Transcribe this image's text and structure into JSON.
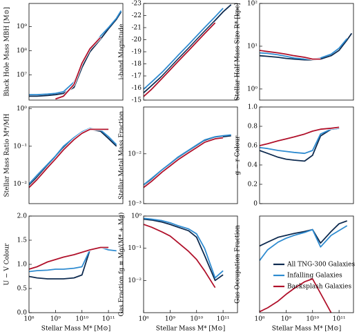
{
  "chart_data": [
    {
      "type": "line",
      "ylabel": "Black Hole Mass MBH [M⊙]",
      "xscale": "log",
      "yscale": "log",
      "xlim": [
        100000000,
        350000000000
      ],
      "ylim": [
        900000,
        9000000000
      ],
      "yticks": [
        {
          "value": 10000000,
          "label": "10⁷"
        },
        {
          "value": 100000000,
          "label": "10⁸"
        },
        {
          "value": 1000000000,
          "label": "10⁹"
        }
      ],
      "x": [
        100000000,
        200000000,
        500000000,
        1000000000,
        2000000000,
        5000000000,
        10000000000,
        20000000000,
        50000000000,
        100000000000,
        200000000000,
        300000000000
      ],
      "series": [
        {
          "color": "#0d2a4f",
          "values": [
            1300000,
            1300000,
            1400000,
            1500000,
            1700000,
            3000000,
            20000000,
            90000000,
            300000000,
            800000000,
            2000000000,
            4000000000
          ]
        },
        {
          "color": "#2e8bd0",
          "values": [
            1500000,
            1500000,
            1600000,
            1700000,
            2000000,
            5000000,
            30000000,
            120000000,
            400000000,
            900000000,
            2200000000,
            4500000000
          ]
        },
        {
          "color": "#b0102a",
          "values": [
            null,
            null,
            null,
            1000000,
            1300000,
            4000000,
            30000000,
            120000000,
            350000000,
            null,
            null,
            null
          ]
        }
      ]
    },
    {
      "type": "line",
      "ylabel": "i-band Magnitude",
      "xscale": "log",
      "yscale": "linear",
      "xlim": [
        100000000,
        350000000000
      ],
      "ylim": [
        -15,
        -23
      ],
      "yticks": [
        -15,
        -16,
        -17,
        -18,
        -19,
        -20,
        -21,
        -22,
        -23
      ],
      "x": [
        100000000,
        200000000,
        500000000,
        1000000000,
        2000000000,
        5000000000,
        10000000000,
        20000000000,
        50000000000,
        100000000000,
        200000000000,
        300000000000
      ],
      "series": [
        {
          "color": "#0d2a4f",
          "values": [
            -15.6,
            -16.2,
            -17.0,
            -17.7,
            -18.4,
            -19.3,
            -20.0,
            -20.7,
            -21.6,
            -22.3,
            -22.9,
            null
          ]
        },
        {
          "color": "#2e8bd0",
          "values": [
            -15.9,
            -16.5,
            -17.3,
            -18.0,
            -18.7,
            -19.6,
            -20.3,
            -21.0,
            -21.9,
            -22.6,
            null,
            null
          ]
        },
        {
          "color": "#b0102a",
          "values": [
            -15.3,
            -15.9,
            -16.8,
            -17.5,
            -18.2,
            -19.1,
            -19.8,
            -20.5,
            -21.4,
            null,
            null,
            null
          ]
        }
      ]
    },
    {
      "type": "line",
      "ylabel": "Stellar Half-Mass Size R* [kpc]",
      "xscale": "log",
      "yscale": "log",
      "xlim": [
        100000000,
        350000000000
      ],
      "ylim": [
        0.55,
        100
      ],
      "yticks": [
        {
          "value": 1,
          "label": "10⁰"
        },
        {
          "value": 10,
          "label": "10¹"
        },
        {
          "value": 100,
          "label": "10²"
        }
      ],
      "x": [
        100000000,
        200000000,
        500000000,
        1000000000,
        2000000000,
        5000000000,
        10000000000,
        20000000000,
        50000000000,
        100000000000,
        200000000000,
        300000000000
      ],
      "series": [
        {
          "color": "#0d2a4f",
          "values": [
            6,
            5.8,
            5.5,
            5.2,
            5,
            4.8,
            4.8,
            5,
            6,
            8,
            14,
            20
          ]
        },
        {
          "color": "#2e8bd0",
          "values": [
            7,
            6.8,
            6.3,
            5.8,
            5.3,
            5,
            5,
            5.3,
            6.5,
            9,
            15,
            null
          ]
        },
        {
          "color": "#b0102a",
          "values": [
            8,
            7.5,
            7,
            6.5,
            6,
            5.5,
            5,
            5,
            null,
            null,
            null,
            null
          ]
        }
      ]
    },
    {
      "type": "line",
      "ylabel": "Stellar Mass Ratio M*/MH",
      "xscale": "log",
      "yscale": "log",
      "xlim": [
        100000000,
        350000000000
      ],
      "ylim": [
        0.003,
        1.1
      ],
      "yticks": [
        {
          "value": 0.01,
          "label": "10⁻²"
        },
        {
          "value": 0.1,
          "label": "10⁻¹"
        },
        {
          "value": 1,
          "label": "10⁰"
        }
      ],
      "x": [
        100000000,
        200000000,
        500000000,
        1000000000,
        2000000000,
        5000000000,
        10000000000,
        20000000000,
        50000000000,
        100000000000,
        200000000000,
        300000000000
      ],
      "series": [
        {
          "color": "#0d2a4f",
          "values": [
            0.009,
            0.015,
            0.03,
            0.05,
            0.09,
            0.16,
            0.22,
            0.28,
            0.25,
            0.16,
            0.1,
            null
          ]
        },
        {
          "color": "#2e8bd0",
          "values": [
            0.01,
            0.017,
            0.033,
            0.055,
            0.1,
            0.17,
            0.24,
            0.3,
            0.27,
            0.18,
            0.11,
            null
          ]
        },
        {
          "color": "#b0102a",
          "values": [
            0.008,
            0.013,
            0.027,
            0.046,
            0.08,
            0.15,
            0.22,
            0.28,
            0.28,
            0.28,
            null,
            null
          ]
        }
      ]
    },
    {
      "type": "line",
      "ylabel": "Stellar Metal Mass Fraction",
      "xscale": "log",
      "yscale": "log",
      "xlim": [
        100000000,
        350000000000
      ],
      "ylim": [
        0.001,
        0.087
      ],
      "yticks": [
        {
          "value": 0.001,
          "label": "10⁻³"
        },
        {
          "value": 0.01,
          "label": "10⁻²"
        }
      ],
      "x": [
        100000000,
        200000000,
        500000000,
        1000000000,
        2000000000,
        5000000000,
        10000000000,
        20000000000,
        50000000000,
        100000000000,
        200000000000,
        300000000000
      ],
      "series": [
        {
          "color": "#0d2a4f",
          "values": [
            0.0022,
            0.003,
            0.0045,
            0.006,
            0.008,
            0.011,
            0.014,
            0.018,
            0.021,
            0.022,
            0.023,
            null
          ]
        },
        {
          "color": "#2e8bd0",
          "values": [
            0.0024,
            0.0032,
            0.0048,
            0.0064,
            0.0086,
            0.0118,
            0.015,
            0.019,
            0.022,
            0.023,
            0.024,
            null
          ]
        },
        {
          "color": "#b0102a",
          "values": [
            0.0021,
            0.0028,
            0.0043,
            0.0057,
            0.0076,
            0.0105,
            0.0133,
            0.017,
            0.02,
            0.021,
            null,
            null
          ]
        }
      ]
    },
    {
      "type": "line",
      "ylabel": "g − r Colour",
      "xscale": "log",
      "yscale": "linear",
      "xlim": [
        100000000,
        350000000000
      ],
      "ylim": [
        0,
        1
      ],
      "yticks": [
        0,
        0.2,
        0.4,
        0.6,
        0.8,
        {
          "value": 1,
          "label": "1.0"
        }
      ],
      "x": [
        100000000,
        200000000,
        500000000,
        1000000000,
        2000000000,
        5000000000,
        10000000000,
        20000000000,
        50000000000,
        100000000000,
        200000000000,
        300000000000
      ],
      "series": [
        {
          "color": "#0d2a4f",
          "values": [
            0.55,
            0.52,
            0.48,
            0.46,
            0.45,
            0.44,
            0.5,
            0.7,
            0.77,
            0.78,
            null,
            null
          ]
        },
        {
          "color": "#2e8bd0",
          "values": [
            0.58,
            0.57,
            0.55,
            0.54,
            0.53,
            0.52,
            0.55,
            0.72,
            0.77,
            0.78,
            null,
            null
          ]
        },
        {
          "color": "#b0102a",
          "values": [
            0.6,
            0.62,
            0.65,
            0.67,
            0.69,
            0.72,
            0.75,
            0.77,
            0.78,
            0.79,
            null,
            null
          ]
        }
      ]
    },
    {
      "type": "line",
      "ylabel": "U − V Colour",
      "xlabel": "Stellar Mass M* [M⊙]",
      "xscale": "log",
      "yscale": "linear",
      "xlim": [
        100000000,
        350000000000
      ],
      "ylim": [
        0,
        2
      ],
      "yticks": [
        {
          "value": 0,
          "label": "0.0"
        },
        0.5,
        {
          "value": 1,
          "label": "1.0"
        },
        1.5,
        {
          "value": 2,
          "label": "2.0"
        }
      ],
      "xticks": [
        {
          "value": 100000000,
          "label": "10⁸"
        },
        {
          "value": 1000000000,
          "label": "10⁹"
        },
        {
          "value": 10000000000,
          "label": "10¹⁰"
        },
        {
          "value": 100000000000,
          "label": "10¹¹"
        }
      ],
      "x": [
        100000000,
        200000000,
        500000000,
        1000000000,
        2000000000,
        5000000000,
        10000000000,
        20000000000,
        50000000000,
        100000000000,
        200000000000,
        300000000000
      ],
      "series": [
        {
          "color": "#0d2a4f",
          "values": [
            0.75,
            0.72,
            0.7,
            0.7,
            0.7,
            0.72,
            0.78,
            1.3,
            1.35,
            null,
            null,
            null
          ]
        },
        {
          "color": "#2e8bd0",
          "values": [
            0.85,
            0.87,
            0.88,
            0.9,
            0.9,
            0.92,
            0.95,
            1.3,
            1.35,
            1.3,
            1.28,
            null
          ]
        },
        {
          "color": "#b0102a",
          "values": [
            0.9,
            0.95,
            1.05,
            1.1,
            1.15,
            1.2,
            1.25,
            1.3,
            1.35,
            1.35,
            null,
            null
          ]
        }
      ]
    },
    {
      "type": "line",
      "ylabel": "Gas Fraction fg ≡ Mg/(M* + Mg)",
      "xlabel": "Stellar Mass M* [M⊙]",
      "xscale": "log",
      "yscale": "log",
      "xlim": [
        100000000,
        350000000000
      ],
      "ylim": [
        0.001,
        1
      ],
      "yticks": [
        {
          "value": 0.01,
          "label": "10⁻²"
        },
        {
          "value": 0.1,
          "label": "10⁻¹"
        },
        {
          "value": 1,
          "label": "10⁰"
        }
      ],
      "xticks": [
        {
          "value": 100000000,
          "label": "10⁸"
        },
        {
          "value": 1000000000,
          "label": "10⁹"
        },
        {
          "value": 10000000000,
          "label": "10¹⁰"
        },
        {
          "value": 100000000000,
          "label": "10¹¹"
        }
      ],
      "x": [
        100000000,
        200000000,
        500000000,
        1000000000,
        2000000000,
        5000000000,
        10000000000,
        20000000000,
        50000000000,
        100000000000,
        200000000000,
        300000000000
      ],
      "series": [
        {
          "color": "#0d2a4f",
          "values": [
            0.8,
            0.75,
            0.65,
            0.55,
            0.45,
            0.35,
            0.22,
            0.06,
            0.01,
            0.015,
            null,
            null
          ]
        },
        {
          "color": "#2e8bd0",
          "values": [
            0.85,
            0.8,
            0.72,
            0.62,
            0.5,
            0.4,
            0.28,
            0.1,
            0.012,
            0.02,
            null,
            null
          ]
        },
        {
          "color": "#b0102a",
          "values": [
            0.55,
            0.45,
            0.32,
            0.24,
            0.15,
            0.08,
            0.045,
            0.02,
            0.006,
            null,
            null,
            null
          ]
        }
      ]
    },
    {
      "type": "line",
      "ylabel": "Gas Occupation Fraction",
      "xlabel": "Stellar Mass M* [M⊙]",
      "xscale": "log",
      "yscale": "linear",
      "xlim": [
        100000000,
        350000000000
      ],
      "ylim": [
        0,
        1
      ],
      "legend": "center right",
      "xticks": [
        {
          "value": 100000000,
          "label": "10⁸"
        },
        {
          "value": 1000000000,
          "label": "10⁹"
        },
        {
          "value": 10000000000,
          "label": "10¹⁰"
        },
        {
          "value": 100000000000,
          "label": "10¹¹"
        }
      ],
      "x": [
        100000000,
        200000000,
        500000000,
        1000000000,
        2000000000,
        5000000000,
        10000000000,
        20000000000,
        50000000000,
        100000000000,
        200000000000,
        300000000000
      ],
      "series": [
        {
          "name": "All TNG-300 Galaxies",
          "color": "#0d2a4f",
          "values": [
            0.69,
            0.73,
            0.78,
            0.8,
            0.82,
            0.84,
            0.86,
            0.72,
            0.84,
            0.92,
            0.95,
            null
          ]
        },
        {
          "name": "Infalling Galaxies",
          "color": "#2e8bd0",
          "values": [
            0.54,
            0.65,
            0.73,
            0.77,
            0.8,
            0.83,
            0.86,
            0.68,
            0.8,
            0.85,
            0.9,
            null
          ]
        },
        {
          "name": "Backsplash Galaxies",
          "color": "#b0102a",
          "values": [
            0.01,
            0.05,
            0.12,
            0.19,
            0.25,
            0.32,
            0.35,
            0.2,
            0,
            null,
            null,
            null
          ]
        }
      ]
    }
  ]
}
